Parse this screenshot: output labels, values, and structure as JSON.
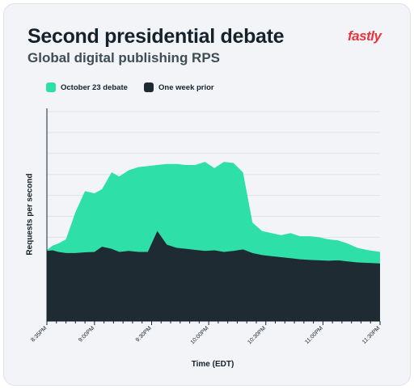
{
  "colors": {
    "background": "#f2f4f7",
    "series_debate": "#2ee0a8",
    "series_prior": "#1e2b33",
    "grid": "#e0e4ea",
    "brand": "#e8343c"
  },
  "brand": {
    "logo_text": "fastly"
  },
  "chart_data": {
    "type": "area",
    "title": "Second presidential debate",
    "subtitle": "Global digital publishing RPS",
    "xlabel": "Time (EDT)",
    "ylabel": "Requests per second",
    "legend_position": "top-left",
    "grid": true,
    "x_ticks": [
      "8:35PM",
      "9:00PM",
      "9:30PM",
      "10:00PM",
      "10:30PM",
      "11:00PM",
      "11:30PM"
    ],
    "x_tick_minutes": [
      0,
      25,
      55,
      85,
      115,
      145,
      175
    ],
    "x_range_minutes": [
      0,
      175
    ],
    "ylim": [
      0,
      10
    ],
    "x": [
      0,
      3,
      6,
      10,
      15,
      20,
      25,
      29,
      34,
      38,
      43,
      48,
      53,
      58,
      63,
      68,
      73,
      78,
      83,
      88,
      93,
      98,
      103,
      108,
      113,
      118,
      123,
      128,
      133,
      138,
      143,
      148,
      153,
      158,
      163,
      168,
      175
    ],
    "series": [
      {
        "name": "October 23 debate",
        "values": [
          3.4,
          3.6,
          3.7,
          3.9,
          5.2,
          6.2,
          6.1,
          6.3,
          7.1,
          6.9,
          7.2,
          7.35,
          7.4,
          7.45,
          7.5,
          7.5,
          7.45,
          7.45,
          7.6,
          7.3,
          7.6,
          7.55,
          7.1,
          4.7,
          4.3,
          4.2,
          4.1,
          4.2,
          4.05,
          4.05,
          4.0,
          3.9,
          3.85,
          3.7,
          3.5,
          3.4,
          3.3
        ]
      },
      {
        "name": "One week prior",
        "values": [
          3.35,
          3.38,
          3.3,
          3.25,
          3.25,
          3.28,
          3.3,
          3.55,
          3.45,
          3.3,
          3.35,
          3.3,
          3.3,
          4.3,
          3.65,
          3.5,
          3.45,
          3.4,
          3.35,
          3.38,
          3.3,
          3.35,
          3.42,
          3.25,
          3.15,
          3.1,
          3.05,
          3.0,
          2.95,
          2.92,
          2.9,
          2.88,
          2.9,
          2.85,
          2.8,
          2.78,
          2.75
        ]
      }
    ]
  }
}
